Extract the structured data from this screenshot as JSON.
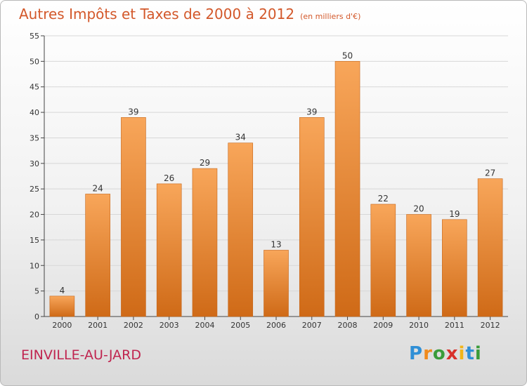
{
  "title": "Autres Impôts et Taxes de 2000 à 2012",
  "subtitle": "(en milliers d'€)",
  "city": "EINVILLE-AU-JARD",
  "logo": {
    "letters": [
      "P",
      "r",
      "o",
      "x",
      "i",
      "t",
      "i"
    ],
    "colors": [
      "#2f8fd6",
      "#f08a1c",
      "#3a9c3a",
      "#d8302a",
      "#f2b51a",
      "#2f8fd6",
      "#3a9c3a"
    ]
  },
  "colors": {
    "bar_light": "#f8a65a",
    "bar_dark": "#cf6a17",
    "title": "#d3582a",
    "city": "#c0244f"
  },
  "chart_data": {
    "type": "bar",
    "title": "Autres Impôts et Taxes de 2000 à 2012",
    "subtitle": "(en milliers d'€)",
    "categories": [
      "2000",
      "2001",
      "2002",
      "2003",
      "2004",
      "2005",
      "2006",
      "2007",
      "2008",
      "2009",
      "2010",
      "2011",
      "2012"
    ],
    "values": [
      4,
      24,
      39,
      26,
      29,
      34,
      13,
      39,
      50,
      22,
      20,
      19,
      27
    ],
    "data_labels": [
      "4",
      "24",
      "39",
      "26",
      "29",
      "34",
      "13",
      "39",
      "50",
      "22",
      "20",
      "19",
      "27"
    ],
    "ylim": [
      0,
      55
    ],
    "yticks": [
      0,
      5,
      10,
      15,
      20,
      25,
      30,
      35,
      40,
      45,
      50,
      55
    ],
    "ytick_labels": [
      "0",
      "5",
      "10",
      "15",
      "20",
      "25",
      "30",
      "35",
      "40",
      "45",
      "50",
      "55"
    ],
    "grid": true,
    "legend": false
  }
}
